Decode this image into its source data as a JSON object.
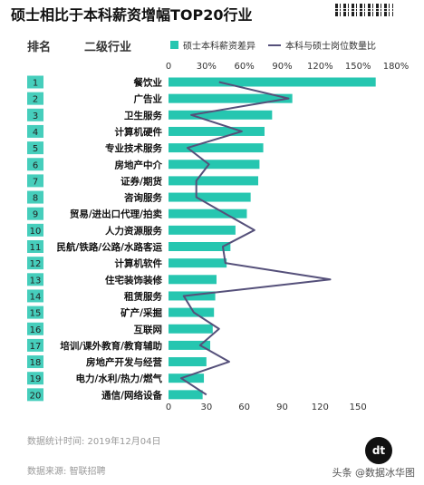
{
  "title": "硕士相比于本科薪资增幅TOP20行业",
  "headers": {
    "rank": "排名",
    "industry": "二级行业"
  },
  "legend": {
    "bar": "硕士本科薪资差异",
    "line": "本科与硕士岗位数量比"
  },
  "colors": {
    "bar": "#26c6b0",
    "line": "#55507a",
    "rank_bg": "#26c6b0"
  },
  "footer": {
    "date": "数据统计时间: 2019年12月04日",
    "source": "数据来源: 智联招聘"
  },
  "logo_text": "dt",
  "watermark": "头条 @数据冰华图",
  "chart_data": {
    "type": "bar",
    "top_axis": {
      "ticks": [
        "0",
        "30%",
        "60%",
        "90%",
        "120%",
        "150%",
        "180%"
      ],
      "range": [
        0,
        180
      ]
    },
    "bottom_axis": {
      "ticks": [
        "0",
        "30",
        "60",
        "90",
        "120",
        "150"
      ],
      "range": [
        0,
        180
      ]
    },
    "categories": [
      "餐饮业",
      "广告业",
      "卫生服务",
      "计算机硬件",
      "专业技术服务",
      "房地产中介",
      "证券/期货",
      "咨询服务",
      "贸易/进出口代理/拍卖",
      "人力资源服务",
      "民航/铁路/公路/水路客运",
      "计算机软件",
      "住宅装饰装修",
      "租赁服务",
      "矿产/采掘",
      "互联网",
      "培训/课外教育/教育辅助",
      "房地产开发与经营",
      "电力/水利/热力/燃气",
      "通信/网络设备"
    ],
    "ranks": [
      "1",
      "2",
      "3",
      "4",
      "5",
      "6",
      "7",
      "8",
      "9",
      "10",
      "11",
      "12",
      "13",
      "14",
      "15",
      "16",
      "17",
      "18",
      "19",
      "20"
    ],
    "series": [
      {
        "values": [
          164,
          98,
          82,
          76,
          75,
          72,
          71,
          65,
          62,
          53,
          49,
          46,
          38,
          37,
          36,
          35,
          33,
          30,
          28,
          27
        ]
      },
      {
        "values": [
          40,
          95,
          18,
          58,
          15,
          32,
          22,
          22,
          45,
          68,
          43,
          45,
          128,
          12,
          20,
          40,
          25,
          48,
          10,
          30
        ]
      }
    ]
  }
}
